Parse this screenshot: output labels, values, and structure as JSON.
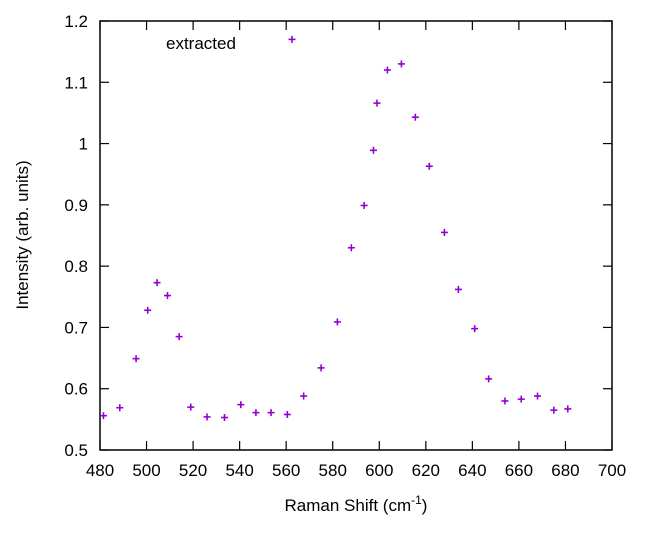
{
  "chart_data": {
    "type": "scatter",
    "title": "",
    "xlabel": "Raman Shift (cm",
    "xlabel_superscript": "-1",
    "xlabel_suffix": ")",
    "ylabel": "Intensity (arb. units)",
    "xlim": [
      480,
      700
    ],
    "ylim": [
      0.5,
      1.2
    ],
    "x_ticks": [
      480,
      500,
      520,
      540,
      560,
      580,
      600,
      620,
      640,
      660,
      680,
      700
    ],
    "y_ticks": [
      0.5,
      0.6,
      0.7,
      0.8,
      0.9,
      1,
      1.1,
      1.2
    ],
    "x_tick_labels": [
      "480",
      "500",
      "520",
      "540",
      "560",
      "580",
      "600",
      "620",
      "640",
      "660",
      "680",
      "700"
    ],
    "y_tick_labels": [
      "0.5",
      "0.6",
      "0.7",
      "0.8",
      "0.9",
      "1",
      "1.1",
      "1.2"
    ],
    "grid": false,
    "legend_position": "top-left",
    "series": [
      {
        "name": "extracted",
        "color": "#9400d3",
        "marker": "plus",
        "x": [
          481.5,
          488.5,
          495.5,
          500.5,
          504.5,
          509,
          514,
          519,
          526,
          533.5,
          540.5,
          547,
          553.5,
          560.5,
          562.5,
          567.5,
          575,
          582,
          588,
          593.5,
          597.5,
          599,
          603.5,
          609.5,
          615.5,
          621.5,
          628,
          634,
          641,
          647,
          654,
          661,
          668,
          675,
          681
        ],
        "y": [
          0.556,
          0.569,
          0.649,
          0.728,
          0.773,
          0.752,
          0.685,
          0.57,
          0.554,
          0.553,
          0.574,
          0.561,
          0.561,
          0.558,
          1.17,
          0.588,
          0.634,
          0.709,
          0.83,
          0.899,
          0.989,
          1.066,
          1.12,
          1.13,
          1.043,
          0.963,
          0.855,
          0.762,
          0.698,
          0.616,
          0.58,
          0.583,
          0.588,
          0.565,
          0.567
        ]
      }
    ]
  }
}
